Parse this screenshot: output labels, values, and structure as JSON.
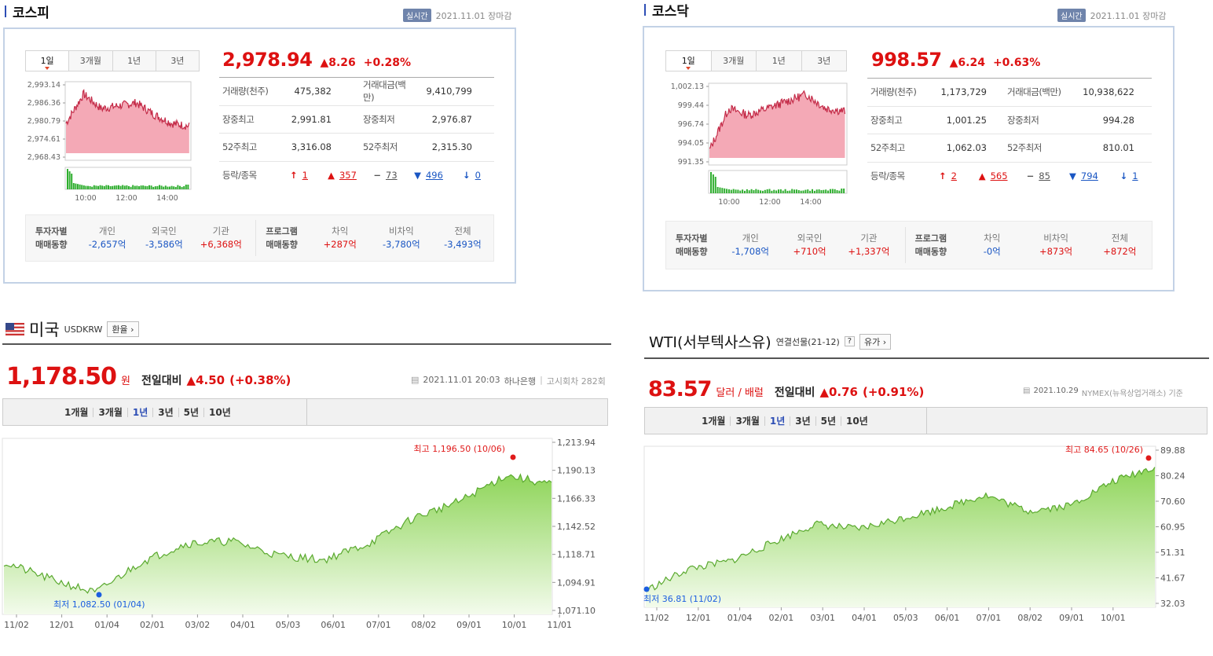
{
  "kospi": {
    "title": "코스피",
    "realtime_badge": "실시간",
    "datetime": "2021.11.01 장마감",
    "tabs": [
      "1일",
      "3개월",
      "1년",
      "3년"
    ],
    "price": "2,978.94",
    "change": "▲8.26",
    "change_pct": "+0.28%",
    "yticks": [
      "2,993.14",
      "2,986.36",
      "2,980.79",
      "2,974.61",
      "2,968.43"
    ],
    "xticks": [
      "10:00",
      "12:00",
      "14:00"
    ],
    "stats": [
      [
        "거래량(천주)",
        "475,382",
        "거래대금(백만)",
        "9,410,799"
      ],
      [
        "장중최고",
        "2,991.81",
        "장중최저",
        "2,976.87"
      ],
      [
        "52주최고",
        "3,316.08",
        "52주최저",
        "2,315.30"
      ]
    ],
    "breadth_label": "등락/종목",
    "breadth": [
      {
        "icon": "↑",
        "val": "1",
        "color": "#d11"
      },
      {
        "icon": "▲",
        "val": "357",
        "color": "#d11"
      },
      {
        "icon": "−",
        "val": "73",
        "color": "#555"
      },
      {
        "icon": "▼",
        "val": "496",
        "color": "#1a56c3"
      },
      {
        "icon": "↓",
        "val": "0",
        "color": "#1a56c3"
      }
    ],
    "inv_label1": "투자자별",
    "inv_label2": "매매동향",
    "investors": [
      {
        "name": "개인",
        "val": "-2,657억",
        "color": "#1a56c3"
      },
      {
        "name": "외국인",
        "val": "-3,586억",
        "color": "#1a56c3"
      },
      {
        "name": "기관",
        "val": "+6,368억",
        "color": "#d11"
      }
    ],
    "prog_label1": "프로그램",
    "prog_label2": "매매동향",
    "program": [
      {
        "name": "차익",
        "val": "+287억",
        "color": "#d11"
      },
      {
        "name": "비차익",
        "val": "-3,780억",
        "color": "#1a56c3"
      },
      {
        "name": "전체",
        "val": "-3,493억",
        "color": "#1a56c3"
      }
    ]
  },
  "kosdaq": {
    "title": "코스닥",
    "realtime_badge": "실시간",
    "datetime": "2021.11.01 장마감",
    "tabs": [
      "1일",
      "3개월",
      "1년",
      "3년"
    ],
    "price": "998.57",
    "change": "▲6.24",
    "change_pct": "+0.63%",
    "yticks": [
      "1,002.13",
      "999.44",
      "996.74",
      "994.05",
      "991.35"
    ],
    "xticks": [
      "10:00",
      "12:00",
      "14:00"
    ],
    "stats": [
      [
        "거래량(천주)",
        "1,173,729",
        "거래대금(백만)",
        "10,938,622"
      ],
      [
        "장중최고",
        "1,001.25",
        "장중최저",
        "994.28"
      ],
      [
        "52주최고",
        "1,062.03",
        "52주최저",
        "810.01"
      ]
    ],
    "breadth_label": "등락/종목",
    "breadth": [
      {
        "icon": "↑",
        "val": "2",
        "color": "#d11"
      },
      {
        "icon": "▲",
        "val": "565",
        "color": "#d11"
      },
      {
        "icon": "−",
        "val": "85",
        "color": "#555"
      },
      {
        "icon": "▼",
        "val": "794",
        "color": "#1a56c3"
      },
      {
        "icon": "↓",
        "val": "1",
        "color": "#1a56c3"
      }
    ],
    "inv_label1": "투자자별",
    "inv_label2": "매매동향",
    "investors": [
      {
        "name": "개인",
        "val": "-1,708억",
        "color": "#1a56c3"
      },
      {
        "name": "외국인",
        "val": "+710억",
        "color": "#d11"
      },
      {
        "name": "기관",
        "val": "+1,337억",
        "color": "#d11"
      }
    ],
    "prog_label1": "프로그램",
    "prog_label2": "매매동향",
    "program": [
      {
        "name": "차익",
        "val": "-0억",
        "color": "#1a56c3"
      },
      {
        "name": "비차익",
        "val": "+873억",
        "color": "#d11"
      },
      {
        "name": "전체",
        "val": "+872억",
        "color": "#d11"
      }
    ]
  },
  "usd": {
    "title": "미국",
    "code": "USDKRW",
    "btn": "환율",
    "price": "1,178.50",
    "unit": "원",
    "prev_label": "전일대비",
    "change": "▲4.50",
    "change_pct": "(+0.38%)",
    "info_date": "2021.11.01 20:03",
    "info_src": "하나은행",
    "info_sep": "|",
    "info_note": "고시회차 282회",
    "periods": [
      "1개월",
      "3개월",
      "1년",
      "3년",
      "5년",
      "10년"
    ],
    "active_period": "1년",
    "yticks": [
      "1,213.94",
      "1,190.13",
      "1,166.33",
      "1,142.52",
      "1,118.71",
      "1,094.91",
      "1,071.10"
    ],
    "xticks": [
      "11/02",
      "12/01",
      "01/04",
      "02/01",
      "03/02",
      "04/01",
      "05/03",
      "06/01",
      "07/01",
      "08/02",
      "09/01",
      "10/01",
      "11/01"
    ],
    "high_label": "최고 1,196.50 (10/06)",
    "low_label": "최저 1,082.50 (01/04)"
  },
  "wti": {
    "title": "WTI(서부텍사스유)",
    "sub": "연결선물(21-12)",
    "help": "?",
    "btn": "유가",
    "price": "83.57",
    "unit": "달러 / 배럴",
    "prev_label": "전일대비",
    "change": "▲0.76",
    "change_pct": "(+0.91%)",
    "info_date": "2021.10.29",
    "info_src": "NYMEX(뉴욕상업거래소) 기준",
    "periods": [
      "1개월",
      "3개월",
      "1년",
      "3년",
      "5년",
      "10년"
    ],
    "active_period": "1년",
    "yticks": [
      "89.88",
      "80.24",
      "70.60",
      "60.95",
      "51.31",
      "41.67",
      "32.03"
    ],
    "xticks": [
      "11/02",
      "12/01",
      "01/04",
      "02/01",
      "03/01",
      "04/01",
      "05/03",
      "06/01",
      "07/01",
      "08/02",
      "09/01",
      "10/01"
    ],
    "high_label": "최고 84.65 (10/26)",
    "low_label": "최저 36.81 (11/02)"
  },
  "chart_data": [
    {
      "type": "area",
      "title": "코스피",
      "x": [
        "09:00",
        "10:00",
        "11:00",
        "12:00",
        "13:00",
        "14:00",
        "15:00",
        "15:30"
      ],
      "values": [
        2980,
        2990,
        2985,
        2986,
        2987,
        2983,
        2980,
        2979
      ],
      "ylim": [
        2968.43,
        2993.14
      ],
      "color": "#e0607a"
    },
    {
      "type": "area",
      "title": "코스닥",
      "x": [
        "09:00",
        "10:00",
        "11:00",
        "12:00",
        "13:00",
        "14:00",
        "15:00",
        "15:30"
      ],
      "values": [
        993,
        999,
        998,
        999,
        1000,
        1001,
        999,
        998.6
      ],
      "ylim": [
        991.35,
        1002.13
      ],
      "color": "#e0607a"
    },
    {
      "type": "area",
      "title": "미국 USDKRW",
      "x": [
        "11/02",
        "12/01",
        "01/04",
        "02/01",
        "03/02",
        "04/01",
        "05/03",
        "06/01",
        "07/01",
        "08/02",
        "09/01",
        "10/01",
        "11/01"
      ],
      "values": [
        1112,
        1098,
        1086,
        1112,
        1128,
        1130,
        1118,
        1114,
        1128,
        1150,
        1164,
        1186,
        1178
      ],
      "ylim": [
        1071.1,
        1213.94
      ],
      "color": "#7cc84a"
    },
    {
      "type": "area",
      "title": "WTI(서부텍사스유)",
      "x": [
        "11/02",
        "12/01",
        "01/04",
        "02/01",
        "03/01",
        "04/01",
        "05/03",
        "06/01",
        "07/01",
        "08/02",
        "09/01",
        "10/01",
        "10/29"
      ],
      "values": [
        36.8,
        45,
        48,
        55,
        62,
        60,
        64,
        68,
        73,
        67,
        69,
        78,
        83.6
      ],
      "ylim": [
        32.03,
        89.88
      ],
      "color": "#7cc84a"
    }
  ],
  "colors": {
    "up": "#dd1111",
    "down": "#1a56c3",
    "accent": "#2d4eb5",
    "area_red": "#e0607a",
    "area_green": "#7cc84a"
  }
}
